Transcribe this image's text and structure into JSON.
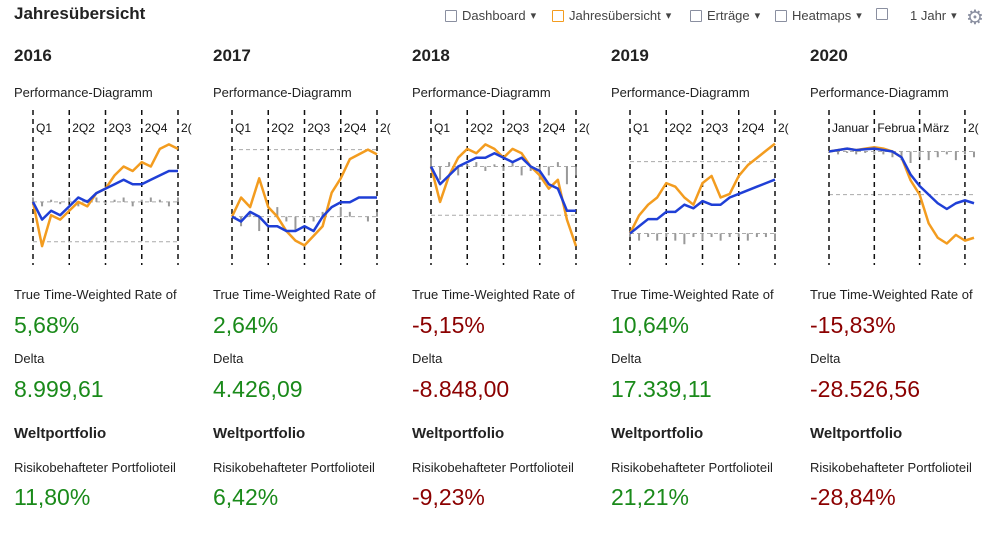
{
  "header": {
    "title": "Jahresübersicht",
    "toolbar": [
      {
        "label": "Dashboard",
        "icon_color": "#8a8fa0"
      },
      {
        "label": "Jahresübersicht",
        "icon_color": "#f39c1f"
      },
      {
        "label": "Erträge",
        "icon_color": "#8a8fa0"
      },
      {
        "label": "Heatmaps",
        "icon_color": "#8a8fa0"
      }
    ],
    "period": "1 Jahr"
  },
  "positive_color": "#1a8a1a",
  "negative_color": "#8b0000",
  "columns": [
    {
      "year": "2016",
      "chart_title": "Performance-Diagramm",
      "chart": {
        "type": "line",
        "ylim": [
          -12,
          14
        ],
        "ref_lines": [
          0,
          -9
        ],
        "period_starts": [
          0,
          4,
          8,
          12,
          16
        ],
        "period_labels": [
          "Q1",
          "2Q2",
          "2Q3",
          "2Q4",
          "2("
        ],
        "bars": {
          "color": "#999999",
          "values": [
            1,
            -1,
            0.5,
            -0.5,
            1,
            -1,
            0.5,
            1,
            -0.5,
            0.5,
            1,
            -1,
            0.5,
            1,
            0.5,
            -1,
            1
          ]
        },
        "lines": [
          {
            "color": "#f39c1f",
            "values": [
              0,
              -10,
              -3,
              -4,
              -2,
              0,
              -1,
              2,
              3,
              6,
              8,
              7,
              9,
              8,
              12,
              13,
              12
            ]
          },
          {
            "color": "#1f3fd6",
            "values": [
              0,
              -4,
              -2,
              -3,
              -1,
              1,
              0,
              2,
              3,
              4,
              5,
              4,
              4,
              5,
              6,
              7,
              7
            ]
          }
        ]
      },
      "metrics": [
        {
          "label": "True Time-Weighted Rate of",
          "value": "5,68%"
        },
        {
          "label": "Delta",
          "value": "8.999,61"
        }
      ],
      "section": "Weltportfolio",
      "risk_label": "Risikobehafteter Portfolioteil",
      "risk_value": "11,80%"
    },
    {
      "year": "2017",
      "chart_title": "Performance-Diagramm",
      "chart": {
        "type": "line",
        "ylim": [
          -8,
          16
        ],
        "ref_lines": [
          0,
          14
        ],
        "period_starts": [
          0,
          4,
          8,
          12,
          16
        ],
        "period_labels": [
          "Q1",
          "2Q2",
          "2Q3",
          "2Q4",
          "2("
        ],
        "bars": {
          "color": "#999999",
          "values": [
            0,
            -2,
            1,
            -3,
            0,
            2,
            -1,
            -3,
            0,
            -1,
            1,
            0,
            2,
            1,
            0,
            -1,
            1
          ]
        },
        "lines": [
          {
            "color": "#f39c1f",
            "values": [
              0,
              4,
              2,
              8,
              2,
              0,
              -3,
              -5,
              -6,
              -4,
              -2,
              5,
              8,
              12,
              13,
              14,
              13
            ]
          },
          {
            "color": "#1f3fd6",
            "values": [
              0,
              -1,
              1,
              0,
              -2,
              -2,
              -3,
              -3,
              -2,
              -3,
              0,
              2,
              3,
              3,
              4,
              4,
              4
            ]
          }
        ]
      },
      "metrics": [
        {
          "label": "True Time-Weighted Rate of",
          "value": "2,64%"
        },
        {
          "label": "Delta",
          "value": "4.426,09"
        }
      ],
      "section": "Weltportfolio",
      "risk_label": "Risikobehafteter Portfolioteil",
      "risk_value": "6,42%"
    },
    {
      "year": "2018",
      "chart_title": "Performance-Diagramm",
      "chart": {
        "type": "line",
        "ylim": [
          -20,
          6
        ],
        "ref_lines": [
          0,
          -11
        ],
        "period_starts": [
          0,
          4,
          8,
          12,
          16
        ],
        "period_labels": [
          "Q1",
          "2Q2",
          "2Q3",
          "2Q4",
          "2("
        ],
        "bars": {
          "color": "#999999",
          "values": [
            2,
            -3,
            1,
            -2,
            0.5,
            1,
            -1,
            0.5,
            -1,
            1,
            -2,
            -1,
            -3,
            -2,
            1,
            -4,
            -2
          ]
        },
        "lines": [
          {
            "color": "#f39c1f",
            "values": [
              0,
              -8,
              -2,
              2,
              4,
              3,
              5,
              4,
              2,
              4,
              3,
              0,
              -2,
              -5,
              -3,
              -12,
              -18
            ]
          },
          {
            "color": "#1f3fd6",
            "values": [
              0,
              -4,
              -2,
              0,
              1,
              2,
              2,
              3,
              2,
              1,
              2,
              0,
              -1,
              -4,
              -5,
              -10,
              -10
            ]
          }
        ]
      },
      "metrics": [
        {
          "label": "True Time-Weighted Rate of",
          "value": "-5,15%"
        },
        {
          "label": "Delta",
          "value": "-8.848,00"
        }
      ],
      "section": "Weltportfolio",
      "risk_label": "Risikobehafteter Portfolioteil",
      "risk_value": "-9,23%"
    },
    {
      "year": "2019",
      "chart_title": "Performance-Diagramm",
      "chart": {
        "type": "line",
        "ylim": [
          -6,
          26
        ],
        "ref_lines": [
          0,
          20
        ],
        "period_starts": [
          0,
          4,
          8,
          12,
          16
        ],
        "period_labels": [
          "Q1",
          "2Q2",
          "2Q3",
          "2Q4",
          "2("
        ],
        "bars": {
          "color": "#999999",
          "values": [
            -1,
            -2,
            -1,
            -2,
            -1,
            -2,
            -3,
            -1,
            -2,
            -1,
            -2,
            -1,
            -1,
            -2,
            -1,
            -1,
            -2
          ]
        },
        "lines": [
          {
            "color": "#f39c1f",
            "values": [
              0,
              5,
              8,
              10,
              14,
              13,
              10,
              8,
              14,
              16,
              10,
              11,
              16,
              19,
              21,
              23,
              25
            ]
          },
          {
            "color": "#1f3fd6",
            "values": [
              0,
              2,
              4,
              4,
              6,
              6,
              8,
              7,
              9,
              8,
              8,
              10,
              11,
              12,
              13,
              14,
              15
            ]
          }
        ]
      },
      "metrics": [
        {
          "label": "True Time-Weighted Rate of",
          "value": "10,64%"
        },
        {
          "label": "Delta",
          "value": "17.339,11"
        }
      ],
      "section": "Weltportfolio",
      "risk_label": "Risikobehafteter Portfolioteil",
      "risk_value": "21,21%"
    },
    {
      "year": "2020",
      "chart_title": "Performance-Diagramm",
      "chart": {
        "type": "line",
        "ylim": [
          -36,
          4
        ],
        "ref_lines": [
          0,
          -15
        ],
        "period_starts": [
          0,
          5,
          10,
          15
        ],
        "period_labels": [
          "Januar",
          "Februa",
          "März",
          "2("
        ],
        "bars": {
          "color": "#999999",
          "values": [
            -0.5,
            -1,
            -0.5,
            -1,
            -0.5,
            -1,
            -1,
            -2,
            -3,
            -4,
            -2,
            -3,
            -2,
            -1,
            -3,
            -1,
            -2
          ]
        },
        "lines": [
          {
            "color": "#f39c1f",
            "values": [
              0,
              0.5,
              1,
              0.5,
              1,
              1.5,
              1,
              0,
              -2,
              -10,
              -15,
              -25,
              -30,
              -32,
              -29,
              -31,
              -30
            ]
          },
          {
            "color": "#1f3fd6",
            "values": [
              0,
              0.5,
              1,
              0.5,
              0.8,
              1,
              0.5,
              0,
              -2,
              -8,
              -12,
              -15,
              -18,
              -20,
              -18,
              -17,
              -18
            ]
          }
        ]
      },
      "metrics": [
        {
          "label": "True Time-Weighted Rate of",
          "value": "-15,83%"
        },
        {
          "label": "Delta",
          "value": "-28.526,56"
        }
      ],
      "section": "Weltportfolio",
      "risk_label": "Risikobehafteter Portfolioteil",
      "risk_value": "-28,84%"
    }
  ]
}
